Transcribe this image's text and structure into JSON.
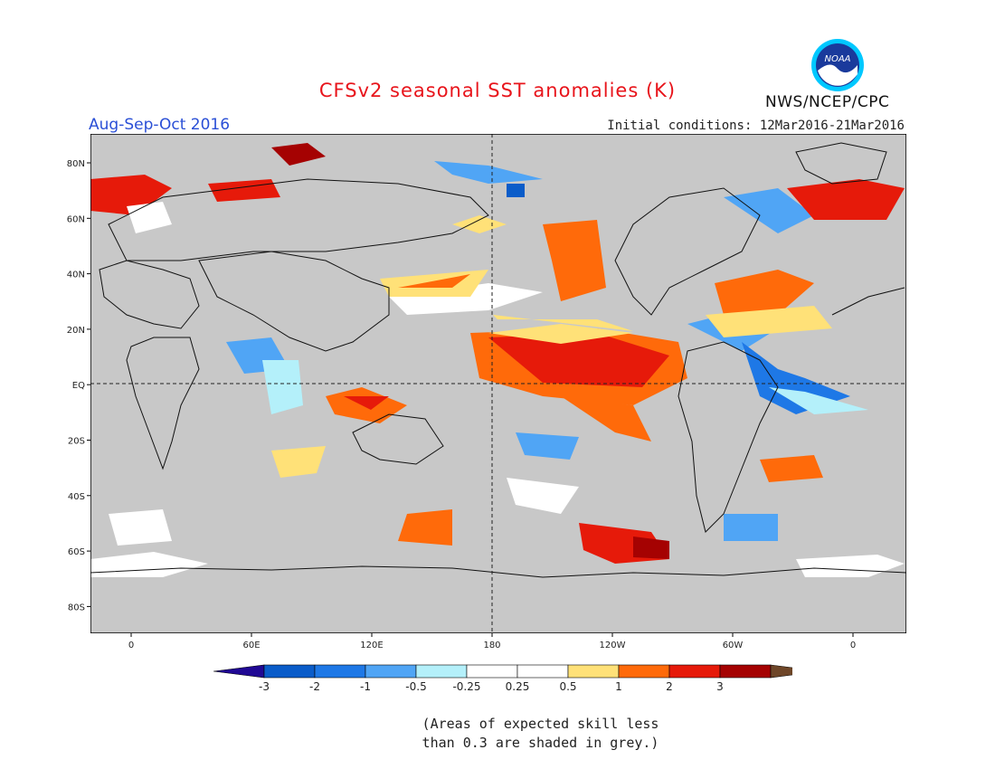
{
  "title": "CFSv2 seasonal SST anomalies (K)",
  "period": "Aug-Sep-Oct 2016",
  "initial_conditions": "Initial conditions: 12Mar2016-21Mar2016",
  "agency": "NWS/NCEP/CPC",
  "logo_text": "NOAA",
  "footnote": {
    "line1": "(Areas of expected skill less",
    "line2": "than 0.3 are shaded in grey.)"
  },
  "map": {
    "lat_labels": [
      "80N",
      "60N",
      "40N",
      "20N",
      "EQ",
      "20S",
      "40S",
      "60S",
      "80S"
    ],
    "lon_labels": [
      "0",
      "60E",
      "120E",
      "180",
      "120W",
      "60W",
      "0"
    ],
    "grey_color": "#c8c8c8",
    "land_color": "#c8c8c8"
  },
  "colorbar": {
    "colors": [
      "#200894",
      "#0a5cc9",
      "#1e78e6",
      "#50a5f5",
      "#b4f0fa",
      "#ffffff",
      "#ffffff",
      "#ffe178",
      "#ff6a0a",
      "#e61a0a",
      "#a50202",
      "#6e4628"
    ],
    "labels": [
      "-3",
      "-2",
      "-1",
      "-0.5",
      "-0.25",
      "0.25",
      "0.5",
      "1",
      "2",
      "3"
    ]
  },
  "legend": {
    "ticks": [
      "-3",
      "-2",
      "-1",
      "-0.5",
      "-0.25",
      "0.25",
      "0.5",
      "1",
      "2",
      "3"
    ]
  }
}
